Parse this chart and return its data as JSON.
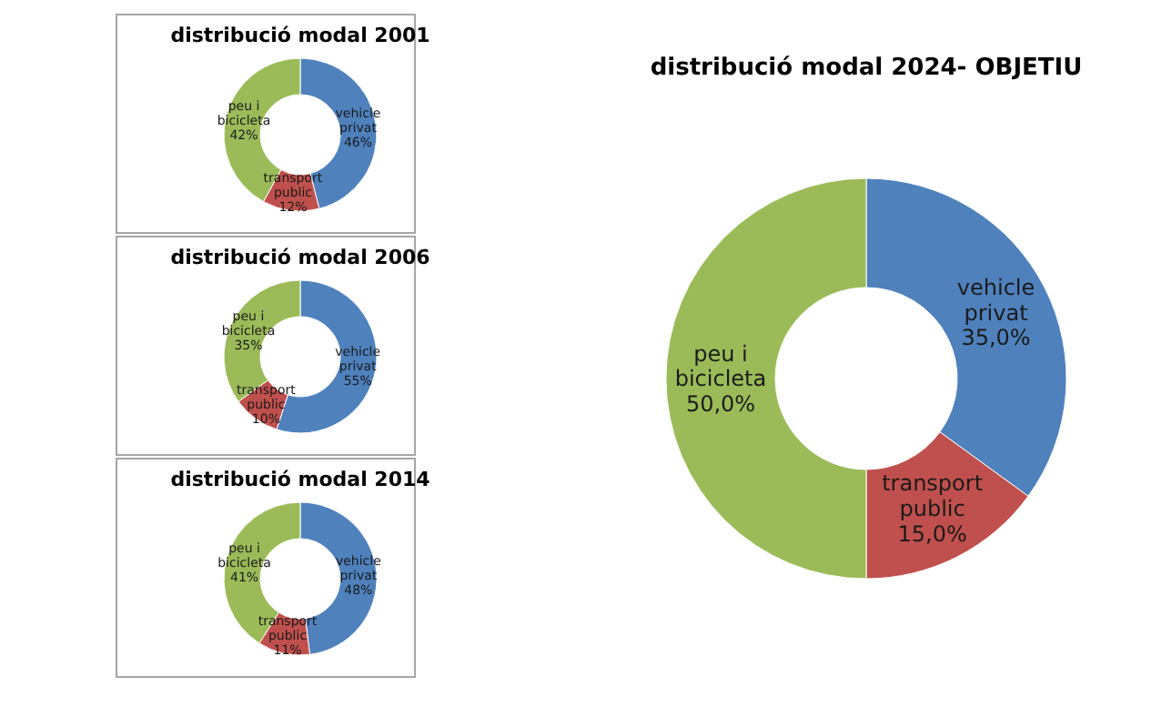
{
  "chart_data": [
    {
      "type": "donut",
      "title": "distribució modal 2001",
      "categories": [
        "vehicle privat",
        "transport public",
        "peu i bicicleta"
      ],
      "values": [
        46,
        12,
        42
      ],
      "value_labels": [
        "46%",
        "12%",
        "42%"
      ],
      "colors": [
        "#4f81bd",
        "#c0504d",
        "#9bbb59"
      ]
    },
    {
      "type": "donut",
      "title": "distribució modal 2006",
      "categories": [
        "vehicle privat",
        "transport public",
        "peu i bicicleta"
      ],
      "values": [
        55,
        10,
        35
      ],
      "value_labels": [
        "55%",
        "10%",
        "35%"
      ],
      "colors": [
        "#4f81bd",
        "#c0504d",
        "#9bbb59"
      ]
    },
    {
      "type": "donut",
      "title": "distribució modal 2014",
      "categories": [
        "vehicle privat",
        "transport public",
        "peu i bicicleta"
      ],
      "values": [
        48,
        11,
        41
      ],
      "value_labels": [
        "48%",
        "11%",
        "41%"
      ],
      "colors": [
        "#4f81bd",
        "#c0504d",
        "#9bbb59"
      ]
    },
    {
      "type": "donut",
      "title": "distribució modal 2024- OBJETIU",
      "categories": [
        "vehicle privat",
        "transport public",
        "peu i bicicleta"
      ],
      "values": [
        35.0,
        15.0,
        50.0
      ],
      "value_labels": [
        "35,0%",
        "15,0%",
        "50,0%"
      ],
      "colors": [
        "#4f81bd",
        "#c0504d",
        "#9bbb59"
      ]
    }
  ]
}
